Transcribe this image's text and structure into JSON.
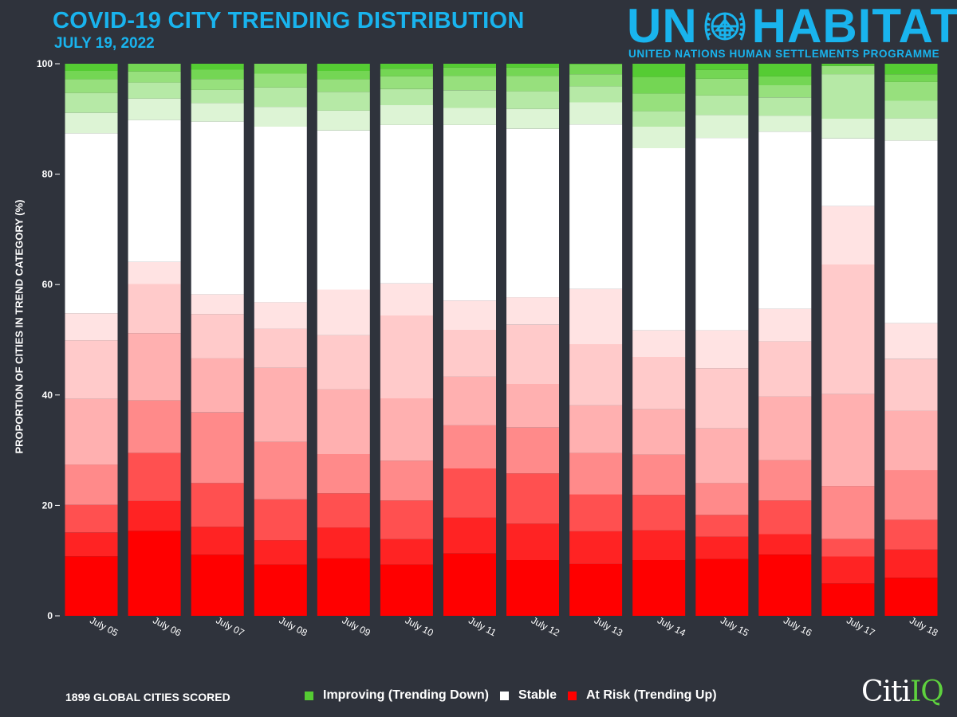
{
  "header": {
    "title": "COVID-19 CITY TRENDING DISTRIBUTION",
    "date": "JULY 19, 2022"
  },
  "logo": {
    "left_text": "UN",
    "right_text": "HABITAT",
    "subtitle": "UNITED NATIONS HUMAN SETTLEMENTS PROGRAMME"
  },
  "footer": {
    "cities_scored": "1899 GLOBAL CITIES SCORED",
    "brand_left": "Citi",
    "brand_right": "IQ"
  },
  "legend": {
    "improving": "Improving (Trending Down)",
    "stable": "Stable",
    "at_risk": "At Risk (Trending Up)"
  },
  "colors": {
    "background": "#2f333c",
    "accent": "#19b4ee",
    "improving": "#55cc33",
    "stable": "#ffffff",
    "at_risk": "#ff0000",
    "segments_bottom_to_top": [
      "#ff0000",
      "#ff2323",
      "#ff5050",
      "#ff8a8a",
      "#ffb0b0",
      "#ffcaca",
      "#ffe3e3",
      "#ffffff",
      "#ddf4d5",
      "#b6e9a6",
      "#97e07d",
      "#74d654",
      "#55cc33"
    ]
  },
  "chart_data": {
    "type": "bar",
    "stacked": true,
    "ylabel": "PROPORTION OF CITIES IN TREND CATEGORY (%)",
    "xlabel": "",
    "ylim": [
      0,
      100
    ],
    "yticks": [
      0,
      20,
      40,
      60,
      80,
      100
    ],
    "grid": false,
    "legend_position": "bottom",
    "categories": [
      "July 05",
      "July 06",
      "July 07",
      "July 08",
      "July 09",
      "July 10",
      "July 11",
      "July 12",
      "July 13",
      "July 14",
      "July 15",
      "July 16",
      "July 17",
      "July 18"
    ],
    "series_order": "bottom-to-top; segments 1-7 At Risk (darkest to lightest), 8 Stable, 9-13 Improving (lightest to darkest)",
    "series": [
      {
        "values": [
          10.8,
          15.4,
          11.2,
          9.3,
          10.4,
          9.3,
          11.3,
          10.1,
          9.4,
          10.1,
          10.2,
          11.1,
          5.9,
          6.9
        ]
      },
      {
        "values": [
          4.3,
          5.4,
          5.1,
          4.4,
          5.6,
          4.6,
          6.5,
          6.6,
          5.9,
          5.4,
          4.0,
          3.7,
          4.9,
          5.1
        ]
      },
      {
        "values": [
          5.0,
          8.7,
          8.0,
          7.4,
          6.2,
          7.0,
          8.9,
          9.1,
          6.7,
          6.4,
          3.9,
          6.1,
          3.2,
          5.4
        ]
      },
      {
        "values": [
          7.3,
          9.5,
          12.9,
          10.4,
          7.1,
          7.2,
          7.8,
          8.3,
          7.5,
          7.3,
          5.7,
          7.3,
          9.6,
          9.0
        ]
      },
      {
        "values": [
          11.9,
          12.2,
          9.9,
          13.4,
          11.7,
          11.3,
          8.8,
          7.9,
          8.6,
          8.2,
          9.8,
          11.5,
          16.7,
          10.7
        ]
      },
      {
        "values": [
          10.6,
          8.9,
          8.1,
          7.1,
          9.8,
          15.0,
          8.5,
          10.7,
          11.1,
          9.5,
          10.8,
          10.0,
          23.6,
          9.4
        ]
      },
      {
        "values": [
          4.9,
          4.0,
          3.6,
          4.8,
          8.3,
          5.8,
          5.3,
          5.0,
          10.0,
          4.8,
          6.8,
          5.9,
          10.6,
          6.5
        ]
      },
      {
        "values": [
          32.6,
          25.7,
          31.6,
          31.8,
          28.8,
          28.7,
          31.8,
          30.5,
          29.8,
          33.0,
          34.5,
          32.1,
          12.3,
          33.1
        ]
      },
      {
        "values": [
          3.7,
          3.9,
          3.4,
          3.6,
          3.6,
          3.6,
          3.1,
          3.6,
          4.0,
          3.9,
          4.1,
          2.9,
          3.6,
          4.0
        ]
      },
      {
        "values": [
          3.6,
          2.9,
          2.4,
          3.5,
          3.4,
          2.9,
          3.2,
          3.2,
          2.9,
          2.8,
          3.5,
          3.3,
          8.1,
          3.2
        ]
      },
      {
        "values": [
          2.5,
          2.0,
          2.0,
          2.5,
          2.3,
          2.3,
          2.6,
          2.8,
          2.2,
          3.2,
          3.0,
          2.2,
          1.5,
          3.4
        ]
      },
      {
        "values": [
          1.5,
          1.4,
          1.7,
          1.8,
          1.5,
          1.4,
          1.5,
          1.5,
          1.8,
          3.0,
          1.6,
          1.6,
          0.0,
          1.4
        ]
      },
      {
        "values": [
          1.3,
          0.0,
          1.1,
          0.0,
          1.3,
          0.9,
          0.7,
          0.7,
          0.1,
          2.4,
          1.1,
          2.3,
          0.4,
          1.9
        ]
      }
    ]
  }
}
